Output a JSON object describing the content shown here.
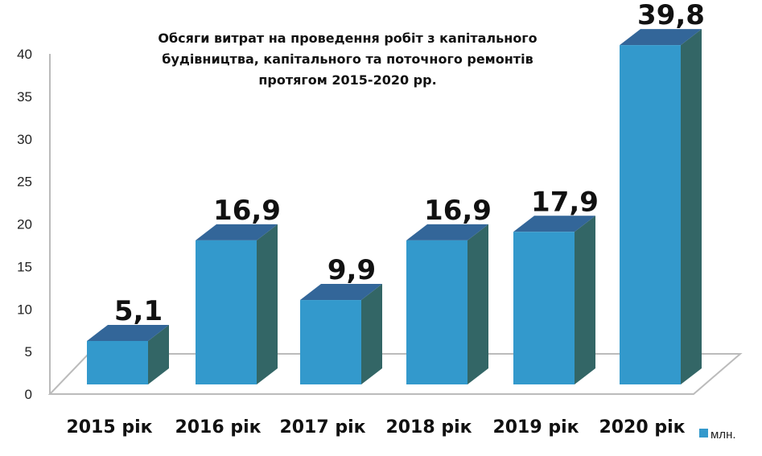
{
  "chart_data": {
    "type": "bar",
    "title": [
      "Обсяги витрат на проведення робіт з капітального",
      "будівництва, капітального та поточного ремонтів",
      "протягом 2015-2020 рр."
    ],
    "categories": [
      "2015 рік",
      "2016 рік",
      "2017 рік",
      "2018 рік",
      "2019 рік",
      "2020 рік"
    ],
    "series": [
      {
        "name": "млн.",
        "values": [
          5.1,
          16.9,
          9.9,
          16.9,
          17.9,
          39.8
        ]
      }
    ],
    "data_labels": [
      "5,1",
      "16,9",
      "9,9",
      "16,9",
      "17,9",
      "39,8"
    ],
    "ylim": [
      0,
      40
    ],
    "yticks": [
      "0",
      "5",
      "10",
      "15",
      "20",
      "25",
      "30",
      "35",
      "40"
    ],
    "xlabel": "",
    "ylabel": "",
    "legend_position": "bottom-right",
    "colors": {
      "front": "#3399CC",
      "top": "#336699",
      "side": "#336666"
    }
  }
}
